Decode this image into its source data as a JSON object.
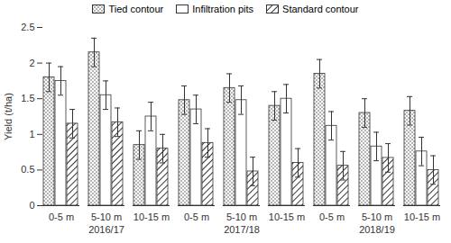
{
  "chart_data": {
    "type": "bar",
    "y_label": "Yield (t/ha)",
    "categories": [
      "0-5 m",
      "5-10 m",
      "10-15 m",
      "0-5 m",
      "5-10 m",
      "10-15 m",
      "0-5 m",
      "5-10 m",
      "10-15 m"
    ],
    "groups": [
      "2016/17",
      "2017/18",
      "2018/19"
    ],
    "series": [
      {
        "name": "Tied contour",
        "values": [
          1.8,
          2.15,
          0.85,
          1.48,
          1.65,
          1.4,
          1.85,
          1.3,
          1.33
        ],
        "errors": [
          0.2,
          0.2,
          0.2,
          0.2,
          0.2,
          0.2,
          0.2,
          0.2,
          0.2
        ]
      },
      {
        "name": "Infiltration pits",
        "values": [
          1.75,
          1.55,
          1.25,
          1.35,
          1.48,
          1.5,
          1.12,
          0.83,
          0.76
        ],
        "errors": [
          0.2,
          0.2,
          0.2,
          0.2,
          0.2,
          0.2,
          0.2,
          0.2,
          0.2
        ]
      },
      {
        "name": "Standard contour",
        "values": [
          1.15,
          1.17,
          0.8,
          0.88,
          0.48,
          0.6,
          0.56,
          0.67,
          0.5
        ],
        "errors": [
          0.2,
          0.2,
          0.2,
          0.2,
          0.2,
          0.2,
          0.2,
          0.2,
          0.2
        ]
      }
    ],
    "ylim": [
      0,
      2.5
    ],
    "yticks": [
      0,
      0.5,
      1,
      1.5,
      2,
      2.5
    ],
    "legend": "top",
    "grid": false
  }
}
